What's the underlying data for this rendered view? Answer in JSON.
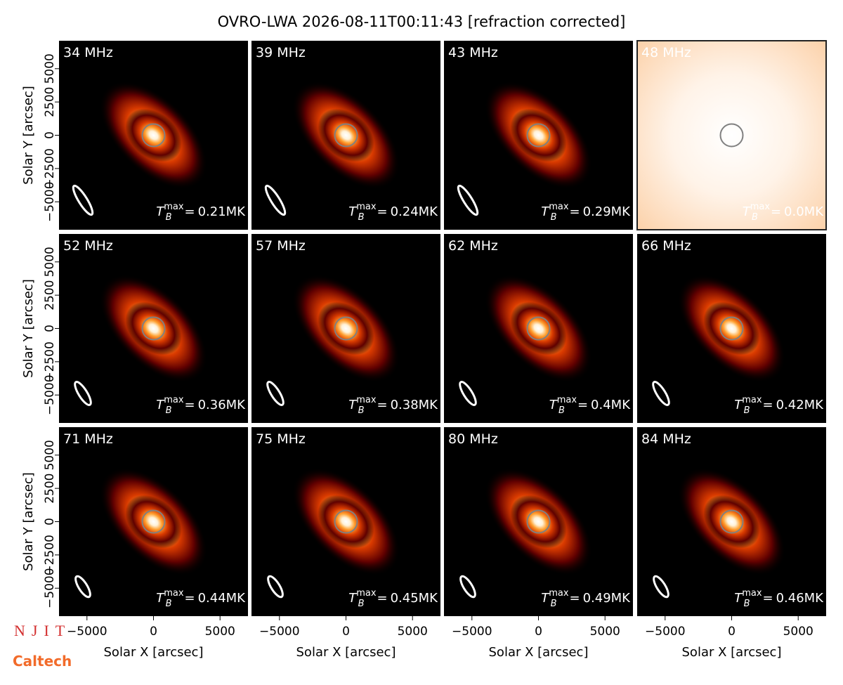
{
  "chart_data": {
    "type": "image-grid",
    "title": "OVRO-LWA 2026-08-11T00:11:43 [refraction corrected]",
    "xlabel": "Solar X [arcsec]",
    "ylabel": "Solar Y [arcsec]",
    "xlim": [
      -7100,
      7100
    ],
    "ylim": [
      -7100,
      7100
    ],
    "xticks": [
      {
        "value": -5000,
        "label": "−5000"
      },
      0,
      5000
    ],
    "yticks": [
      {
        "value": -5000,
        "label": "−5000"
      },
      {
        "value": -2500,
        "label": "−2500"
      },
      0,
      2500,
      5000
    ],
    "tmax_symbol": {
      "base": "T",
      "sub": "B",
      "sup": "max",
      "relation": "="
    },
    "panels": [
      {
        "title": "34 MHz",
        "tmax": 0.21,
        "tmax_label": "0.21MK"
      },
      {
        "title": "39 MHz",
        "tmax": 0.24,
        "tmax_label": "0.24MK"
      },
      {
        "title": "43 MHz",
        "tmax": 0.29,
        "tmax_label": "0.29MK"
      },
      {
        "title": "48 MHz",
        "tmax": 0.0,
        "tmax_label": "0.0MK"
      },
      {
        "title": "52 MHz",
        "tmax": 0.36,
        "tmax_label": "0.36MK"
      },
      {
        "title": "57 MHz",
        "tmax": 0.38,
        "tmax_label": "0.38MK"
      },
      {
        "title": "62 MHz",
        "tmax": 0.4,
        "tmax_label": "0.4MK"
      },
      {
        "title": "66 MHz",
        "tmax": 0.42,
        "tmax_label": "0.42MK"
      },
      {
        "title": "71 MHz",
        "tmax": 0.44,
        "tmax_label": "0.44MK"
      },
      {
        "title": "75 MHz",
        "tmax": 0.45,
        "tmax_label": "0.45MK"
      },
      {
        "title": "80 MHz",
        "tmax": 0.49,
        "tmax_label": "0.49MK"
      },
      {
        "title": "84 MHz",
        "tmax": 0.46,
        "tmax_label": "0.46MK"
      }
    ]
  },
  "logos": {
    "njit": "NJIT",
    "caltech": "Caltech"
  }
}
